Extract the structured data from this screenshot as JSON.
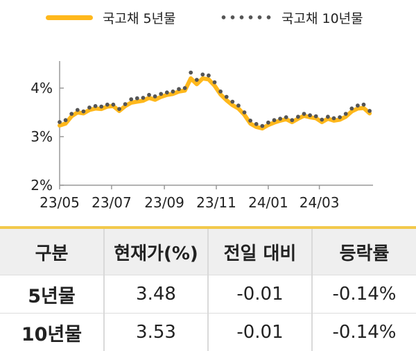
{
  "legend": {
    "series1": "국고채 5년물",
    "series2": "국고채 10년물"
  },
  "colors": {
    "series1": "#FFB81C",
    "series2": "#555555",
    "axis": "#999999"
  },
  "chart_data": {
    "type": "line",
    "title": "",
    "xlabel": "",
    "ylabel": "",
    "ylim": [
      2,
      4.5
    ],
    "y_ticks": [
      "2%",
      "3%",
      "4%"
    ],
    "y_tick_values": [
      2,
      3,
      4
    ],
    "x_ticks": [
      "23/05",
      "23/07",
      "23/09",
      "23/11",
      "24/01",
      "24/03"
    ],
    "x_tick_values": [
      "2023-05-01",
      "2023-07-01",
      "2023-09-01",
      "2023-11-01",
      "2024-01-01",
      "2024-03-01"
    ],
    "x_range": [
      "2023-05-01",
      "2024-05-03"
    ],
    "grid": false,
    "legend_position": "top",
    "series": [
      {
        "name": "국고채 5년물",
        "style": "solid line",
        "x": [
          "2023-05-01",
          "2023-05-08",
          "2023-05-15",
          "2023-05-22",
          "2023-05-29",
          "2023-06-05",
          "2023-06-12",
          "2023-06-19",
          "2023-06-26",
          "2023-07-03",
          "2023-07-10",
          "2023-07-17",
          "2023-07-24",
          "2023-07-31",
          "2023-08-07",
          "2023-08-14",
          "2023-08-21",
          "2023-08-28",
          "2023-09-04",
          "2023-09-11",
          "2023-09-18",
          "2023-09-25",
          "2023-10-02",
          "2023-10-09",
          "2023-10-16",
          "2023-10-23",
          "2023-10-30",
          "2023-11-06",
          "2023-11-13",
          "2023-11-20",
          "2023-11-27",
          "2023-12-04",
          "2023-12-11",
          "2023-12-18",
          "2023-12-25",
          "2024-01-01",
          "2024-01-08",
          "2024-01-15",
          "2024-01-22",
          "2024-01-29",
          "2024-02-05",
          "2024-02-12",
          "2024-02-19",
          "2024-02-26",
          "2024-03-04",
          "2024-03-11",
          "2024-03-18",
          "2024-03-25",
          "2024-04-01",
          "2024-04-08",
          "2024-04-15",
          "2024-04-22",
          "2024-04-29"
        ],
        "y": [
          3.23,
          3.27,
          3.42,
          3.5,
          3.48,
          3.55,
          3.58,
          3.57,
          3.62,
          3.63,
          3.53,
          3.63,
          3.7,
          3.72,
          3.74,
          3.8,
          3.76,
          3.82,
          3.86,
          3.88,
          3.93,
          3.95,
          4.2,
          4.08,
          4.2,
          4.18,
          4.05,
          3.87,
          3.75,
          3.65,
          3.58,
          3.45,
          3.27,
          3.2,
          3.17,
          3.24,
          3.29,
          3.33,
          3.36,
          3.3,
          3.37,
          3.43,
          3.4,
          3.38,
          3.3,
          3.37,
          3.33,
          3.35,
          3.41,
          3.52,
          3.58,
          3.59,
          3.48
        ]
      },
      {
        "name": "국고채 10년물",
        "style": "dotted line",
        "x": [
          "2023-05-01",
          "2023-05-08",
          "2023-05-15",
          "2023-05-22",
          "2023-05-29",
          "2023-06-05",
          "2023-06-12",
          "2023-06-19",
          "2023-06-26",
          "2023-07-03",
          "2023-07-10",
          "2023-07-17",
          "2023-07-24",
          "2023-07-31",
          "2023-08-07",
          "2023-08-14",
          "2023-08-21",
          "2023-08-28",
          "2023-09-04",
          "2023-09-11",
          "2023-09-18",
          "2023-09-25",
          "2023-10-02",
          "2023-10-09",
          "2023-10-16",
          "2023-10-23",
          "2023-10-30",
          "2023-11-06",
          "2023-11-13",
          "2023-11-20",
          "2023-11-27",
          "2023-12-04",
          "2023-12-11",
          "2023-12-18",
          "2023-12-25",
          "2024-01-01",
          "2024-01-08",
          "2024-01-15",
          "2024-01-22",
          "2024-01-29",
          "2024-02-05",
          "2024-02-12",
          "2024-02-19",
          "2024-02-26",
          "2024-03-04",
          "2024-03-11",
          "2024-03-18",
          "2024-03-25",
          "2024-04-01",
          "2024-04-08",
          "2024-04-15",
          "2024-04-22",
          "2024-04-29"
        ],
        "y": [
          3.3,
          3.34,
          3.47,
          3.55,
          3.52,
          3.6,
          3.63,
          3.62,
          3.66,
          3.66,
          3.57,
          3.67,
          3.77,
          3.79,
          3.8,
          3.86,
          3.83,
          3.88,
          3.91,
          3.93,
          3.98,
          4.0,
          4.32,
          4.17,
          4.28,
          4.26,
          4.12,
          3.93,
          3.82,
          3.72,
          3.64,
          3.5,
          3.33,
          3.26,
          3.22,
          3.29,
          3.34,
          3.37,
          3.4,
          3.34,
          3.41,
          3.47,
          3.44,
          3.42,
          3.35,
          3.41,
          3.38,
          3.4,
          3.47,
          3.58,
          3.64,
          3.66,
          3.53
        ]
      }
    ]
  },
  "table": {
    "headers": [
      "구분",
      "현재가(%)",
      "전일 대비",
      "등락률"
    ],
    "rows": [
      [
        "5년물",
        "3.48",
        "-0.01",
        "-0.14%"
      ],
      [
        "10년물",
        "3.53",
        "-0.01",
        "-0.14%"
      ]
    ]
  }
}
